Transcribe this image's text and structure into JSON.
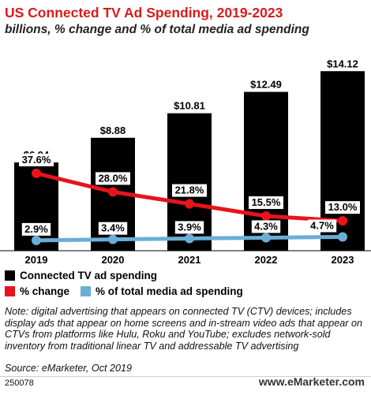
{
  "title": "US Connected TV Ad Spending, 2019-2023",
  "subtitle": "billions, % change and % of total media ad spending",
  "legend": {
    "bar": "Connected TV ad spending",
    "change": "% change",
    "share": "% of total media ad spending"
  },
  "note": "Note: digital advertising that appears on connected TV (CTV) devices; includes display ads that appear on home screens and in-stream video ads that appear on CTVs from platforms like Hulu, Roku and YouTube; excludes network-sold inventory from traditional linear TV and addressable TV advertising",
  "source": "Source: eMarketer, Oct 2019",
  "footer_id": "250078",
  "footer_brand": "www.eMarketer.com",
  "colors": {
    "bar": "#000000",
    "change": "#e8131b",
    "share": "#6aaed6"
  },
  "chart_data": {
    "type": "bar",
    "categories": [
      "2019",
      "2020",
      "2021",
      "2022",
      "2023"
    ],
    "series": [
      {
        "name": "Connected TV ad spending",
        "values": [
          6.94,
          8.88,
          10.81,
          12.49,
          14.12
        ],
        "labels": [
          "$6.94",
          "$8.88",
          "$10.81",
          "$12.49",
          "$14.12"
        ]
      },
      {
        "name": "% change",
        "type": "line",
        "values": [
          37.6,
          28.0,
          21.8,
          15.5,
          13.0
        ],
        "labels": [
          "37.6%",
          "28.0%",
          "21.8%",
          "15.5%",
          "13.0%"
        ]
      },
      {
        "name": "% of total media ad spending",
        "type": "line",
        "values": [
          2.9,
          3.4,
          3.9,
          4.3,
          4.7
        ],
        "labels": [
          "2.9%",
          "3.4%",
          "3.9%",
          "4.3%",
          "4.7%"
        ]
      }
    ],
    "legend_position": "bottom",
    "grid": false
  }
}
